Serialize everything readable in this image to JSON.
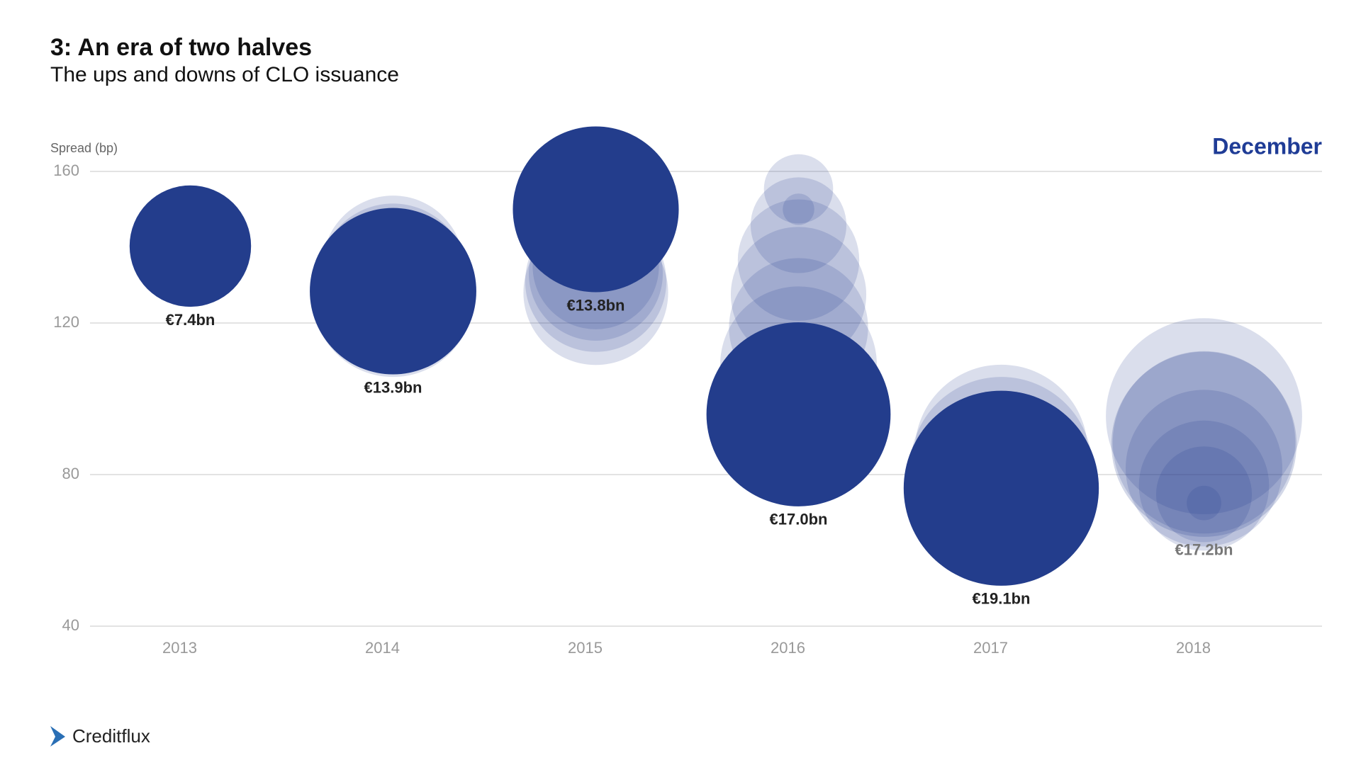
{
  "chart_data": {
    "type": "bubble",
    "title": "3: An era of two halves",
    "subtitle": "The ups and downs of CLO issuance",
    "y_label": "Spread (bp)",
    "annotation": "December",
    "source": "Creditflux",
    "categories": [
      "2013",
      "2014",
      "2015",
      "2016",
      "2017",
      "2018"
    ],
    "ylim": [
      40,
      160
    ],
    "yticks": [
      40,
      80,
      120,
      160
    ],
    "grid": true,
    "series": [
      {
        "color": "rgba(35,61,140,0.17)",
        "x": [
          "2014",
          "2014",
          "2014",
          "2014",
          "2015",
          "2015",
          "2015",
          "2015",
          "2016",
          "2016",
          "2016",
          "2016",
          "2016",
          "2016",
          "2016",
          "2017",
          "2017",
          "2018",
          "2018",
          "2018",
          "2018",
          "2018",
          "2018"
        ],
        "values": [
          135,
          132,
          130,
          127,
          135,
          133,
          131,
          128,
          150,
          155.4,
          145.8,
          136.6,
          127.5,
          118.8,
          109,
          86.2,
          81.7,
          95.4,
          88.5,
          81.7,
          77.1,
          74.8,
          72.5
        ],
        "sizes": [
          10,
          11,
          12,
          13,
          8,
          9,
          10,
          10.5,
          0.5,
          2.4,
          4.6,
          7.4,
          9.2,
          9.7,
          12.3,
          15,
          16.7,
          19.3,
          16.7,
          12.3,
          8.5,
          4.6,
          0.6
        ]
      },
      {
        "colors": [
          "#233d8c",
          "#233d8c",
          "#233d8c",
          "#233d8c",
          "#233d8c",
          "rgba(35,61,140,0.2)"
        ],
        "label_colors": [
          "#222222",
          "#222222",
          "#222222",
          "#222222",
          "#222222",
          "#777777"
        ],
        "x": [
          "2013",
          "2014",
          "2015",
          "2016",
          "2017",
          "2018"
        ],
        "values": [
          140.3,
          128.4,
          150,
          95.9,
          76.4,
          88
        ],
        "sizes": [
          7.4,
          13.9,
          13.8,
          17.0,
          19.1,
          17.2
        ],
        "value_labels": [
          "€7.4bn",
          "€13.9bn",
          "€13.8bn",
          "€17.0bn",
          "€19.1bn",
          "€17.2bn"
        ]
      }
    ]
  }
}
